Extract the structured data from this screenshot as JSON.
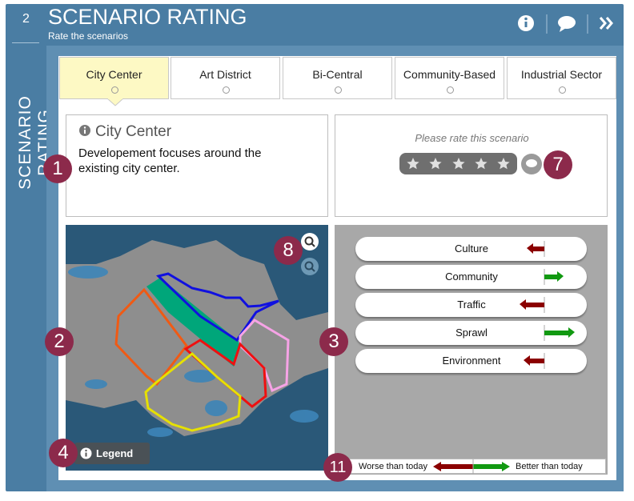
{
  "sidebar": {
    "step": "2",
    "title": "SCENARIO RATING"
  },
  "header": {
    "title": "SCENARIO RATING",
    "subtitle": "Rate the scenarios"
  },
  "tabs": [
    "City Center",
    "Art District",
    "Bi-Central",
    "Community-Based",
    "Industrial Sector"
  ],
  "description": {
    "title": "City Center",
    "text": "Developement focuses around the existing city center."
  },
  "rating": {
    "prompt": "Please rate this scenario"
  },
  "map": {
    "legend_button": "Legend"
  },
  "indicators": [
    "Culture",
    "Community",
    "Traffic",
    "Sprawl",
    "Environment"
  ],
  "scale": {
    "worse": "Worse than today",
    "better": "Better than today"
  },
  "callouts": [
    "1",
    "2",
    "3",
    "4",
    "7",
    "8",
    "11"
  ]
}
